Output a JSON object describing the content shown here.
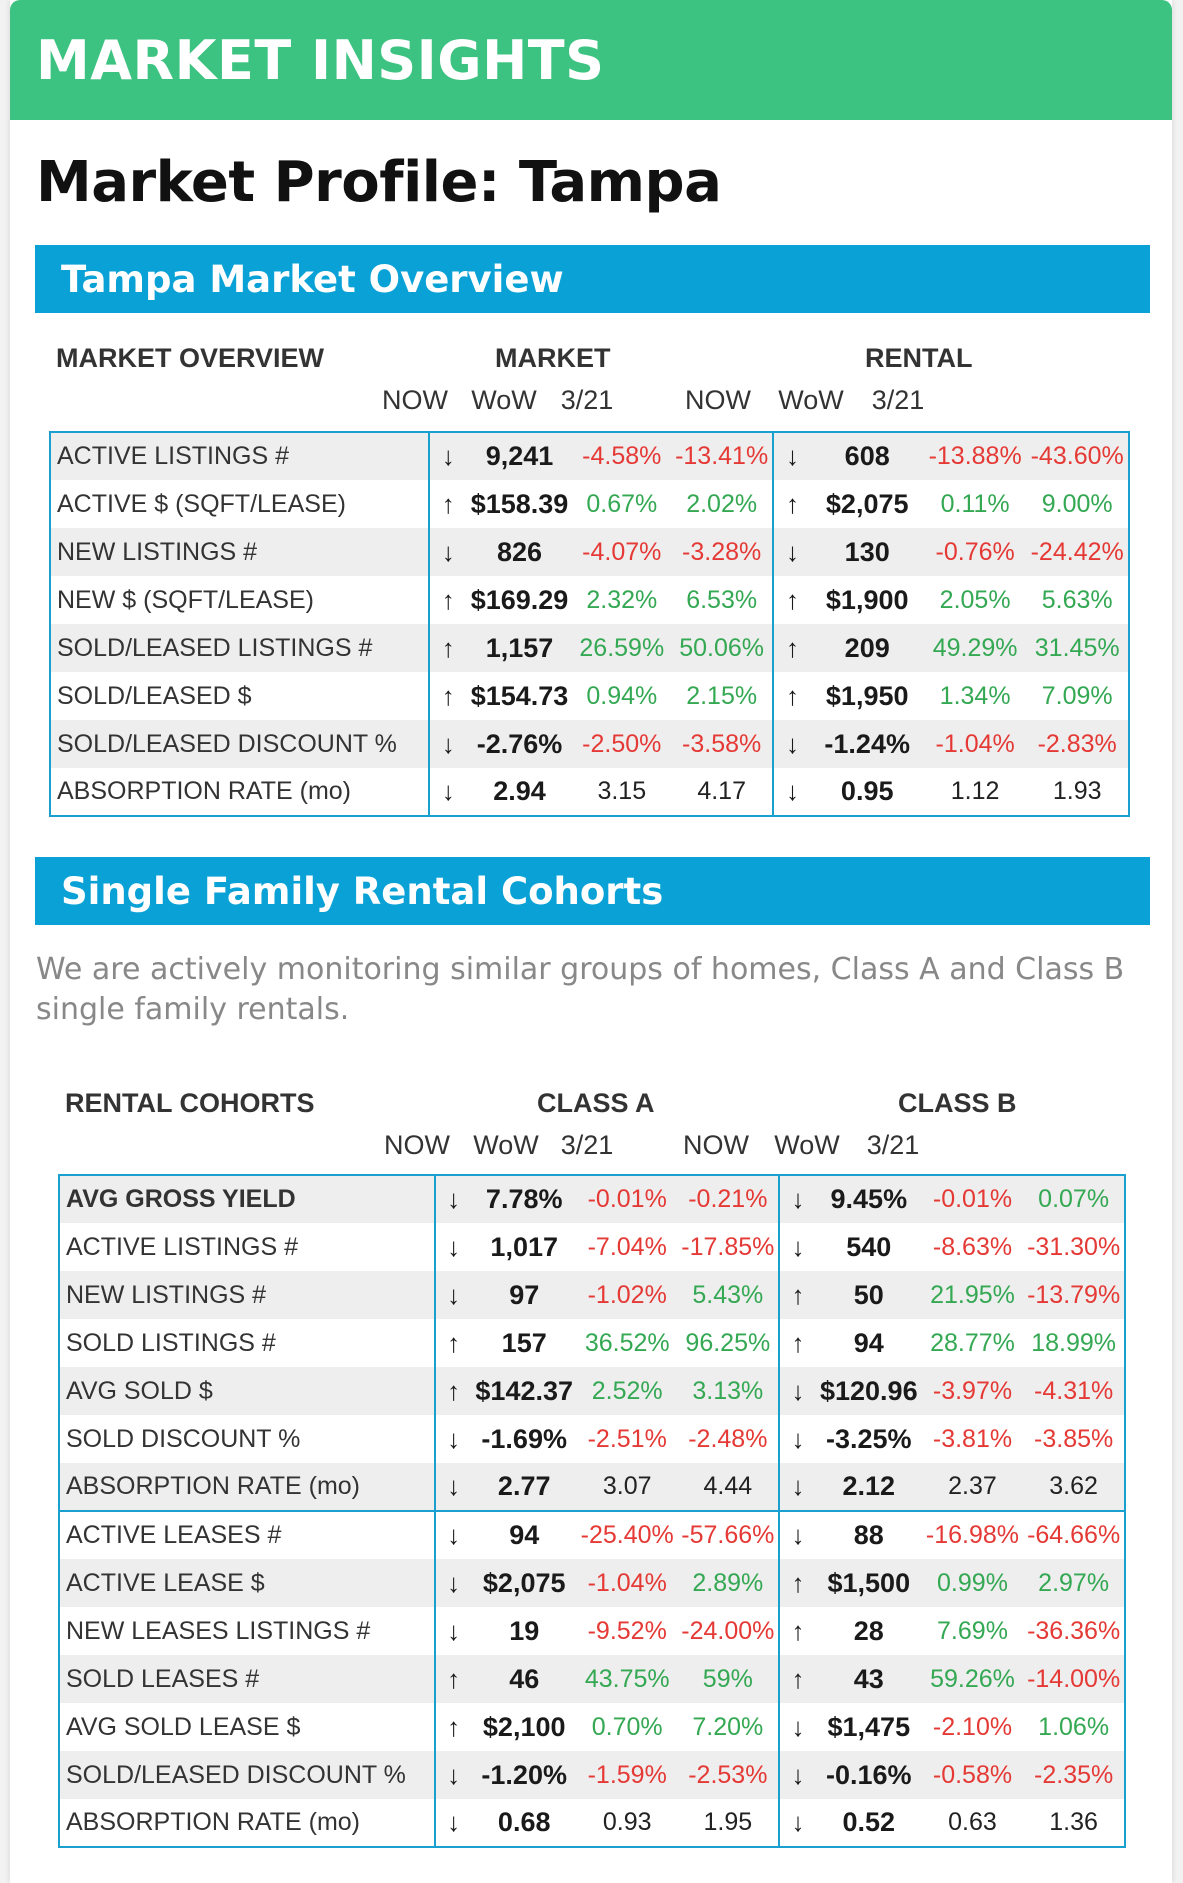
{
  "header": {
    "banner": "MARKET INSIGHTS",
    "page_title": "Market Profile: Tampa"
  },
  "overview": {
    "section_title": "Tampa Market Overview",
    "grid_title": "MARKET OVERVIEW",
    "group_a": "MARKET",
    "group_b": "RENTAL",
    "subheaders": [
      "NOW",
      "WoW",
      "3/21",
      "NOW",
      "WoW",
      "3/21"
    ],
    "rows": [
      {
        "label": "ACTIVE LISTINGS #",
        "a": {
          "arrow": "↓",
          "now": "9,241",
          "wow": "-4.58%",
          "wow_c": "neg",
          "d": "-13.41%",
          "d_c": "neg"
        },
        "b": {
          "arrow": "↓",
          "now": "608",
          "wow": "-13.88%",
          "wow_c": "neg",
          "d": "-43.60%",
          "d_c": "neg"
        }
      },
      {
        "label": "ACTIVE $ (SQFT/LEASE)",
        "a": {
          "arrow": "↑",
          "now": "$158.39",
          "wow": "0.67%",
          "wow_c": "pos",
          "d": "2.02%",
          "d_c": "pos"
        },
        "b": {
          "arrow": "↑",
          "now": "$2,075",
          "wow": "0.11%",
          "wow_c": "pos",
          "d": "9.00%",
          "d_c": "pos"
        }
      },
      {
        "label": "NEW LISTINGS #",
        "a": {
          "arrow": "↓",
          "now": "826",
          "wow": "-4.07%",
          "wow_c": "neg",
          "d": "-3.28%",
          "d_c": "neg"
        },
        "b": {
          "arrow": "↓",
          "now": "130",
          "wow": "-0.76%",
          "wow_c": "neg",
          "d": "-24.42%",
          "d_c": "neg"
        }
      },
      {
        "label": "NEW $ (SQFT/LEASE)",
        "a": {
          "arrow": "↑",
          "now": "$169.29",
          "wow": "2.32%",
          "wow_c": "pos",
          "d": "6.53%",
          "d_c": "pos"
        },
        "b": {
          "arrow": "↑",
          "now": "$1,900",
          "wow": "2.05%",
          "wow_c": "pos",
          "d": "5.63%",
          "d_c": "pos"
        }
      },
      {
        "label": "SOLD/LEASED LISTINGS #",
        "a": {
          "arrow": "↑",
          "now": "1,157",
          "wow": "26.59%",
          "wow_c": "pos",
          "d": "50.06%",
          "d_c": "pos"
        },
        "b": {
          "arrow": "↑",
          "now": "209",
          "wow": "49.29%",
          "wow_c": "pos",
          "d": "31.45%",
          "d_c": "pos"
        }
      },
      {
        "label": "SOLD/LEASED $",
        "a": {
          "arrow": "↑",
          "now": "$154.73",
          "wow": "0.94%",
          "wow_c": "pos",
          "d": "2.15%",
          "d_c": "pos"
        },
        "b": {
          "arrow": "↑",
          "now": "$1,950",
          "wow": "1.34%",
          "wow_c": "pos",
          "d": "7.09%",
          "d_c": "pos"
        }
      },
      {
        "label": "SOLD/LEASED DISCOUNT %",
        "a": {
          "arrow": "↓",
          "now": "-2.76%",
          "wow": "-2.50%",
          "wow_c": "neg",
          "d": "-3.58%",
          "d_c": "neg"
        },
        "b": {
          "arrow": "↓",
          "now": "-1.24%",
          "wow": "-1.04%",
          "wow_c": "neg",
          "d": "-2.83%",
          "d_c": "neg"
        }
      },
      {
        "label": "ABSORPTION RATE (mo)",
        "a": {
          "arrow": "↓",
          "now": "2.94",
          "wow": "3.15",
          "wow_c": "neu",
          "d": "4.17",
          "d_c": "neu"
        },
        "b": {
          "arrow": "↓",
          "now": "0.95",
          "wow": "1.12",
          "wow_c": "neu",
          "d": "1.93",
          "d_c": "neu"
        }
      }
    ]
  },
  "cohorts": {
    "section_title": "Single Family Rental Cohorts",
    "description": "We are actively monitoring similar groups of homes, Class A and Class B single family rentals.",
    "grid_title": "RENTAL COHORTS",
    "group_a": "CLASS A",
    "group_b": "CLASS B",
    "subheaders": [
      "NOW",
      "WoW",
      "3/21",
      "NOW",
      "WoW",
      "3/21"
    ],
    "rows": [
      {
        "label": "AVG GROSS YIELD",
        "bold": true,
        "a": {
          "arrow": "↓",
          "now": "7.78%",
          "wow": "-0.01%",
          "wow_c": "neg",
          "d": "-0.21%",
          "d_c": "neg"
        },
        "b": {
          "arrow": "↓",
          "now": "9.45%",
          "wow": "-0.01%",
          "wow_c": "neg",
          "d": "0.07%",
          "d_c": "pos"
        }
      },
      {
        "label": "ACTIVE LISTINGS #",
        "a": {
          "arrow": "↓",
          "now": "1,017",
          "wow": "-7.04%",
          "wow_c": "neg",
          "d": "-17.85%",
          "d_c": "neg"
        },
        "b": {
          "arrow": "↓",
          "now": "540",
          "wow": "-8.63%",
          "wow_c": "neg",
          "d": "-31.30%",
          "d_c": "neg"
        }
      },
      {
        "label": "NEW LISTINGS #",
        "a": {
          "arrow": "↓",
          "now": "97",
          "wow": "-1.02%",
          "wow_c": "neg",
          "d": "5.43%",
          "d_c": "pos"
        },
        "b": {
          "arrow": "↑",
          "now": "50",
          "wow": "21.95%",
          "wow_c": "pos",
          "d": "-13.79%",
          "d_c": "neg"
        }
      },
      {
        "label": "SOLD LISTINGS #",
        "a": {
          "arrow": "↑",
          "now": "157",
          "wow": "36.52%",
          "wow_c": "pos",
          "d": "96.25%",
          "d_c": "pos"
        },
        "b": {
          "arrow": "↑",
          "now": "94",
          "wow": "28.77%",
          "wow_c": "pos",
          "d": "18.99%",
          "d_c": "pos"
        }
      },
      {
        "label": "AVG SOLD $",
        "a": {
          "arrow": "↑",
          "now": "$142.37",
          "wow": "2.52%",
          "wow_c": "pos",
          "d": "3.13%",
          "d_c": "pos"
        },
        "b": {
          "arrow": "↓",
          "now": "$120.96",
          "wow": "-3.97%",
          "wow_c": "neg",
          "d": "-4.31%",
          "d_c": "neg"
        }
      },
      {
        "label": "SOLD DISCOUNT %",
        "a": {
          "arrow": "↓",
          "now": "-1.69%",
          "wow": "-2.51%",
          "wow_c": "neg",
          "d": "-2.48%",
          "d_c": "neg"
        },
        "b": {
          "arrow": "↓",
          "now": "-3.25%",
          "wow": "-3.81%",
          "wow_c": "neg",
          "d": "-3.85%",
          "d_c": "neg"
        }
      },
      {
        "label": "ABSORPTION RATE (mo)",
        "a": {
          "arrow": "↓",
          "now": "2.77",
          "wow": "3.07",
          "wow_c": "neu",
          "d": "4.44",
          "d_c": "neu"
        },
        "b": {
          "arrow": "↓",
          "now": "2.12",
          "wow": "2.37",
          "wow_c": "neu",
          "d": "3.62",
          "d_c": "neu"
        }
      },
      {
        "label": "ACTIVE LEASES #",
        "sep": true,
        "a": {
          "arrow": "↓",
          "now": "94",
          "wow": "-25.40%",
          "wow_c": "neg",
          "d": "-57.66%",
          "d_c": "neg"
        },
        "b": {
          "arrow": "↓",
          "now": "88",
          "wow": "-16.98%",
          "wow_c": "neg",
          "d": "-64.66%",
          "d_c": "neg"
        }
      },
      {
        "label": "ACTIVE LEASE $",
        "a": {
          "arrow": "↓",
          "now": "$2,075",
          "wow": "-1.04%",
          "wow_c": "neg",
          "d": "2.89%",
          "d_c": "pos"
        },
        "b": {
          "arrow": "↑",
          "now": "$1,500",
          "wow": "0.99%",
          "wow_c": "pos",
          "d": "2.97%",
          "d_c": "pos"
        }
      },
      {
        "label": "NEW LEASES LISTINGS #",
        "a": {
          "arrow": "↓",
          "now": "19",
          "wow": "-9.52%",
          "wow_c": "neg",
          "d": "-24.00%",
          "d_c": "neg"
        },
        "b": {
          "arrow": "↑",
          "now": "28",
          "wow": "7.69%",
          "wow_c": "pos",
          "d": "-36.36%",
          "d_c": "neg"
        }
      },
      {
        "label": "SOLD LEASES #",
        "a": {
          "arrow": "↑",
          "now": "46",
          "wow": "43.75%",
          "wow_c": "pos",
          "d": "59%",
          "d_c": "pos"
        },
        "b": {
          "arrow": "↑",
          "now": "43",
          "wow": "59.26%",
          "wow_c": "pos",
          "d": "-14.00%",
          "d_c": "neg"
        }
      },
      {
        "label": "AVG SOLD LEASE $",
        "a": {
          "arrow": "↑",
          "now": "$2,100",
          "wow": "0.70%",
          "wow_c": "pos",
          "d": "7.20%",
          "d_c": "pos"
        },
        "b": {
          "arrow": "↓",
          "now": "$1,475",
          "wow": "-2.10%",
          "wow_c": "neg",
          "d": "1.06%",
          "d_c": "pos"
        }
      },
      {
        "label": "SOLD/LEASED DISCOUNT %",
        "a": {
          "arrow": "↓",
          "now": "-1.20%",
          "wow": "-1.59%",
          "wow_c": "neg",
          "d": "-2.53%",
          "d_c": "neg"
        },
        "b": {
          "arrow": "↓",
          "now": "-0.16%",
          "wow": "-0.58%",
          "wow_c": "neg",
          "d": "-2.35%",
          "d_c": "neg"
        }
      },
      {
        "label": "ABSORPTION RATE (mo)",
        "a": {
          "arrow": "↓",
          "now": "0.68",
          "wow": "0.93",
          "wow_c": "neu",
          "d": "1.95",
          "d_c": "neu"
        },
        "b": {
          "arrow": "↓",
          "now": "0.52",
          "wow": "0.63",
          "wow_c": "neu",
          "d": "1.36",
          "d_c": "neu"
        }
      }
    ]
  },
  "colors": {
    "banner_green": "#3dc381",
    "section_blue": "#0aa2d6",
    "negative": "#e53935",
    "positive": "#34a853"
  }
}
